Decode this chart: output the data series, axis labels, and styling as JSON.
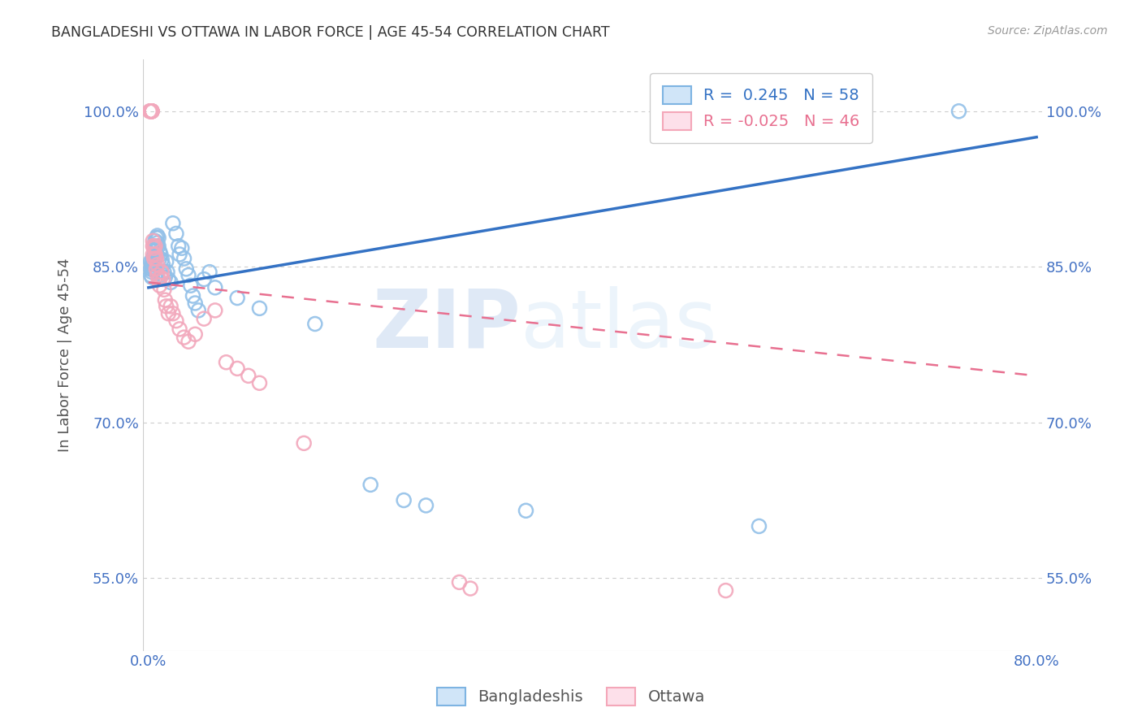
{
  "title": "BANGLADESHI VS OTTAWA IN LABOR FORCE | AGE 45-54 CORRELATION CHART",
  "source": "Source: ZipAtlas.com",
  "ylabel": "In Labor Force | Age 45-54",
  "blue_R": 0.245,
  "blue_N": 58,
  "pink_R": -0.025,
  "pink_N": 46,
  "legend_blue": "Bangladeshis",
  "legend_pink": "Ottawa",
  "blue_color": "#92C0E8",
  "pink_color": "#F2A8BC",
  "blue_line_color": "#3472C4",
  "pink_line_color": "#E87090",
  "tick_color": "#4472C4",
  "grid_color": "#CCCCCC",
  "background_color": "#FFFFFF",
  "ylim_low": 0.48,
  "ylim_high": 1.05,
  "xlim_low": -0.005,
  "xlim_high": 0.805,
  "yticks": [
    55.0,
    70.0,
    85.0,
    100.0
  ],
  "blue_trend": [
    0.0,
    0.8,
    0.83,
    0.975
  ],
  "pink_trend": [
    0.0,
    0.8,
    0.835,
    0.745
  ],
  "blue_x": [
    0.002,
    0.002,
    0.002,
    0.003,
    0.003,
    0.003,
    0.003,
    0.004,
    0.004,
    0.004,
    0.005,
    0.005,
    0.005,
    0.006,
    0.006,
    0.006,
    0.007,
    0.007,
    0.007,
    0.008,
    0.008,
    0.009,
    0.009,
    0.01,
    0.01,
    0.011,
    0.012,
    0.013,
    0.014,
    0.015,
    0.016,
    0.017,
    0.018,
    0.02,
    0.022,
    0.025,
    0.027,
    0.028,
    0.03,
    0.032,
    0.034,
    0.036,
    0.038,
    0.04,
    0.042,
    0.045,
    0.05,
    0.055,
    0.06,
    0.08,
    0.1,
    0.15,
    0.2,
    0.23,
    0.25,
    0.34,
    0.55,
    0.73
  ],
  "blue_y": [
    0.855,
    0.848,
    0.842,
    0.853,
    0.85,
    0.845,
    0.84,
    0.858,
    0.852,
    0.847,
    0.86,
    0.855,
    0.848,
    0.875,
    0.865,
    0.86,
    0.878,
    0.87,
    0.862,
    0.88,
    0.873,
    0.878,
    0.87,
    0.865,
    0.858,
    0.862,
    0.857,
    0.852,
    0.845,
    0.84,
    0.855,
    0.845,
    0.838,
    0.835,
    0.892,
    0.882,
    0.87,
    0.862,
    0.868,
    0.858,
    0.848,
    0.842,
    0.832,
    0.822,
    0.815,
    0.808,
    0.838,
    0.845,
    0.83,
    0.82,
    0.81,
    0.795,
    0.64,
    0.625,
    0.62,
    0.615,
    0.6,
    1.0
  ],
  "pink_x": [
    0.001,
    0.002,
    0.002,
    0.002,
    0.003,
    0.003,
    0.003,
    0.003,
    0.003,
    0.004,
    0.004,
    0.004,
    0.005,
    0.005,
    0.006,
    0.006,
    0.007,
    0.007,
    0.008,
    0.008,
    0.009,
    0.01,
    0.011,
    0.012,
    0.013,
    0.014,
    0.015,
    0.016,
    0.018,
    0.02,
    0.022,
    0.025,
    0.028,
    0.032,
    0.036,
    0.042,
    0.05,
    0.06,
    0.07,
    0.08,
    0.09,
    0.1,
    0.14,
    0.28,
    0.29,
    0.52
  ],
  "pink_y": [
    1.0,
    1.0,
    1.0,
    1.0,
    1.0,
    1.0,
    1.0,
    1.0,
    1.0,
    0.875,
    0.87,
    0.862,
    0.868,
    0.858,
    0.87,
    0.862,
    0.858,
    0.848,
    0.852,
    0.842,
    0.838,
    0.832,
    0.84,
    0.845,
    0.838,
    0.828,
    0.818,
    0.812,
    0.805,
    0.812,
    0.805,
    0.798,
    0.79,
    0.782,
    0.778,
    0.785,
    0.8,
    0.808,
    0.758,
    0.752,
    0.745,
    0.738,
    0.68,
    0.546,
    0.54,
    0.538
  ]
}
